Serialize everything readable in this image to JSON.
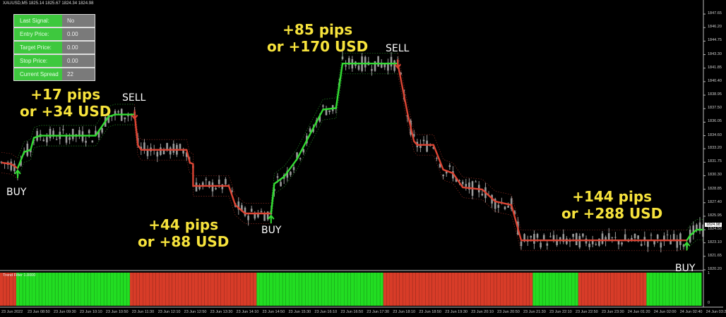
{
  "header": {
    "symbol": "XAUUSD,M5",
    "ohlc": "1825.14 1825.67 1824.34 1824.98"
  },
  "signal_panel": [
    {
      "label": "Last Signal:",
      "value": "No"
    },
    {
      "label": "Entry Price:",
      "value": "0.00"
    },
    {
      "label": "Target Price:",
      "value": "0.00"
    },
    {
      "label": "Stop Price:",
      "value": "0.00"
    },
    {
      "label": "Current Spread",
      "value": "22"
    }
  ],
  "annotations": [
    {
      "line1": "+17 pips",
      "line2": "or +34 USD"
    },
    {
      "line1": "+85 pips",
      "line2": "or +170 USD"
    },
    {
      "line1": "+44 pips",
      "line2": "or +88 USD"
    },
    {
      "line1": "+144 pips",
      "line2": "or +288 USD"
    }
  ],
  "signals": [
    {
      "type": "BUY",
      "bar": 5
    },
    {
      "type": "SELL",
      "bar": 41
    },
    {
      "type": "BUY",
      "bar": 83
    },
    {
      "type": "SELL",
      "bar": 122
    },
    {
      "type": "BUY",
      "bar": 211
    }
  ],
  "indicator": {
    "title": "Trend Filter 1.0000",
    "scale_top": "1",
    "scale_bottom": "0"
  },
  "colors": {
    "buy": "#33dd33",
    "sell": "#dd4433",
    "candle": "#9a9a9a",
    "annotation": "#f7e33c",
    "hist_green": "#22dd22",
    "hist_red": "#d83c28"
  },
  "chart_data": {
    "type": "line",
    "title": "",
    "price_ticks": [
      "1847.65",
      "1846.20",
      "1844.75",
      "1843.30",
      "1841.85",
      "1840.40",
      "1838.95",
      "1837.50",
      "1836.05",
      "1834.60",
      "1833.20",
      "1831.75",
      "1830.30",
      "1828.85",
      "1827.40",
      "1825.95",
      "1824.50",
      "1823.10",
      "1821.65",
      "1820.20"
    ],
    "current_price": "1824.98",
    "ylim": [
      1820.2,
      1847.65
    ],
    "time_ticks": [
      "23 Jun 2022",
      "23 Jun 08:50",
      "23 Jun 09:30",
      "23 Jun 10:10",
      "23 Jun 10:50",
      "23 Jun 11:30",
      "23 Jun 12:10",
      "23 Jun 12:50",
      "23 Jun 13:30",
      "23 Jun 14:10",
      "23 Jun 14:50",
      "23 Jun 15:30",
      "23 Jun 16:10",
      "23 Jun 16:50",
      "23 Jun 17:30",
      "23 Jun 18:10",
      "23 Jun 18:50",
      "23 Jun 19:30",
      "23 Jun 20:10",
      "23 Jun 20:50",
      "23 Jun 21:30",
      "23 Jun 22:10",
      "23 Jun 22:50",
      "23 Jun 23:30",
      "24 Jun 01:20",
      "24 Jun 02:00",
      "24 Jun 02:40",
      "24 Jun 03:2"
    ],
    "trend_segments": [
      {
        "signal": "sell",
        "points": [
          [
            0,
            1831.71
          ],
          [
            3,
            1831.56
          ],
          [
            5,
            1831.1
          ]
        ]
      },
      {
        "signal": "buy",
        "points": [
          [
            5,
            1831.1
          ],
          [
            7,
            1832.85
          ],
          [
            9,
            1833.08
          ],
          [
            10,
            1834.37
          ],
          [
            12,
            1834.6
          ],
          [
            29,
            1834.6
          ],
          [
            33,
            1836.65
          ],
          [
            35,
            1836.87
          ],
          [
            41,
            1836.87
          ]
        ]
      },
      {
        "signal": "sell",
        "points": [
          [
            41,
            1836.87
          ],
          [
            42,
            1833.61
          ],
          [
            43,
            1833.08
          ],
          [
            57,
            1833.08
          ],
          [
            58,
            1831.71
          ],
          [
            59,
            1831.56
          ],
          [
            59,
            1829.21
          ],
          [
            70,
            1829.21
          ],
          [
            72,
            1827.16
          ],
          [
            75,
            1826.25
          ],
          [
            83,
            1826.25
          ]
        ]
      },
      {
        "signal": "buy",
        "points": [
          [
            83,
            1826.25
          ],
          [
            84,
            1829.43
          ],
          [
            87,
            1830.19
          ],
          [
            91,
            1832.09
          ],
          [
            95,
            1834.75
          ],
          [
            99,
            1837.4
          ],
          [
            103,
            1837.56
          ],
          [
            105,
            1842.34
          ],
          [
            122,
            1842.34
          ]
        ]
      },
      {
        "signal": "sell",
        "points": [
          [
            122,
            1842.34
          ],
          [
            125,
            1837.02
          ],
          [
            127,
            1833.99
          ],
          [
            128,
            1833.61
          ],
          [
            133,
            1833.61
          ],
          [
            136,
            1830.95
          ],
          [
            139,
            1830.57
          ],
          [
            142,
            1829.05
          ],
          [
            148,
            1828.83
          ],
          [
            152,
            1827.54
          ],
          [
            157,
            1827.16
          ],
          [
            160,
            1823.36
          ],
          [
            211,
            1823.36
          ]
        ]
      },
      {
        "signal": "buy",
        "points": [
          [
            211,
            1823.36
          ],
          [
            212,
            1823.89
          ],
          [
            214,
            1824.5
          ],
          [
            216,
            1824.5
          ]
        ]
      }
    ],
    "histogram": [
      {
        "state": "sell",
        "from": 0,
        "to": 5
      },
      {
        "state": "buy",
        "from": 5,
        "to": 40
      },
      {
        "state": "sell",
        "from": 40,
        "to": 79
      },
      {
        "state": "buy",
        "from": 79,
        "to": 118
      },
      {
        "state": "sell",
        "from": 118,
        "to": 164
      },
      {
        "state": "buy",
        "from": 164,
        "to": 178
      },
      {
        "state": "sell",
        "from": 178,
        "to": 199
      },
      {
        "state": "buy",
        "from": 199,
        "to": 216
      }
    ]
  }
}
